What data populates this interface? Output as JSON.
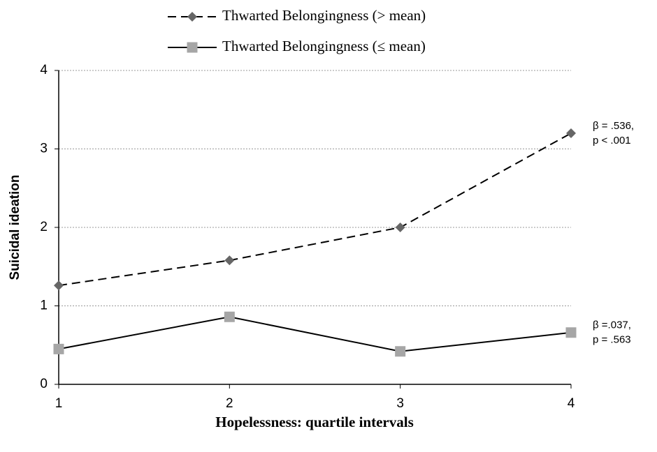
{
  "chart_data": {
    "type": "line",
    "x_label": "Hopelessness: quartile intervals",
    "y_label": "Suicidal ideation",
    "x": [
      1,
      2,
      3,
      4
    ],
    "xlim": [
      1,
      4
    ],
    "xticks": [
      1,
      2,
      3,
      4
    ],
    "ylim": [
      0,
      4
    ],
    "yticks": [
      0,
      1,
      2,
      3,
      4
    ],
    "grid": true,
    "series": [
      {
        "name": "Thwarted Belongingness (> mean)",
        "color": "#666666",
        "line_color": "#000000",
        "dash": true,
        "marker": "diamond",
        "values": [
          1.26,
          1.58,
          2.0,
          3.2
        ],
        "annotation": [
          "β = .536,",
          "p < .001"
        ]
      },
      {
        "name": "Thwarted Belongingness (≤ mean)",
        "color": "#a6a6a6",
        "line_color": "#000000",
        "dash": false,
        "marker": "square",
        "values": [
          0.45,
          0.86,
          0.42,
          0.66
        ],
        "annotation": [
          "β =.037,",
          "p = .563"
        ]
      }
    ]
  }
}
